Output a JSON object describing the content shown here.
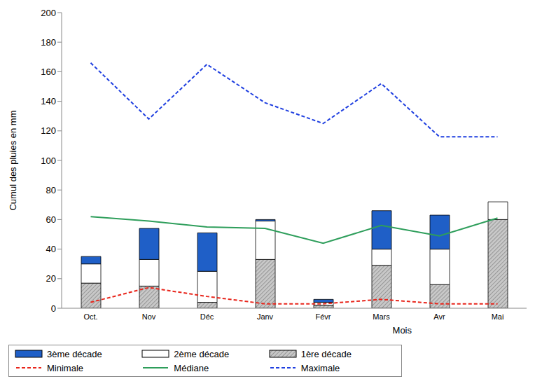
{
  "chart_data": {
    "type": "bar",
    "stacked": true,
    "grid": false,
    "legend": "bottom",
    "x_label": "Mois",
    "y_label": "Cumul des pluies en mm",
    "categories": [
      "Oct.",
      "Nov",
      "Déc",
      "Janv",
      "Févr",
      "Mars",
      "Avr",
      "Mai"
    ],
    "ylim": [
      0,
      200
    ],
    "yticks": [
      0,
      20,
      40,
      60,
      80,
      100,
      120,
      140,
      160,
      180,
      200
    ],
    "series": [
      {
        "name": "3ème décade",
        "type": "bar",
        "color": "#1f5fc7",
        "values": [
          5,
          21,
          26,
          1,
          2,
          26,
          23,
          0
        ]
      },
      {
        "name": "2ème décade",
        "type": "bar",
        "color": "#ffffff",
        "values": [
          13,
          18,
          21,
          26,
          2,
          11,
          24,
          12
        ]
      },
      {
        "name": "1ère décade",
        "type": "bar",
        "color": "#c8c8c8",
        "marker": "hatch",
        "values": [
          17,
          15,
          4,
          33,
          2,
          29,
          16,
          60
        ]
      },
      {
        "name": "Minimale",
        "type": "line",
        "color": "#e8261c",
        "line_style": "dashed",
        "values": [
          4,
          14,
          8,
          3,
          3,
          6,
          3,
          3
        ]
      },
      {
        "name": "Médiane",
        "type": "line",
        "color": "#2e9e5b",
        "line_style": "solid",
        "values": [
          62,
          59,
          55,
          54,
          44,
          56,
          49,
          61
        ]
      },
      {
        "name": "Maximale",
        "type": "line",
        "color": "#1f3fe0",
        "line_style": "dashed",
        "values": [
          166,
          128,
          165,
          139,
          125,
          152,
          116,
          116
        ]
      }
    ]
  }
}
